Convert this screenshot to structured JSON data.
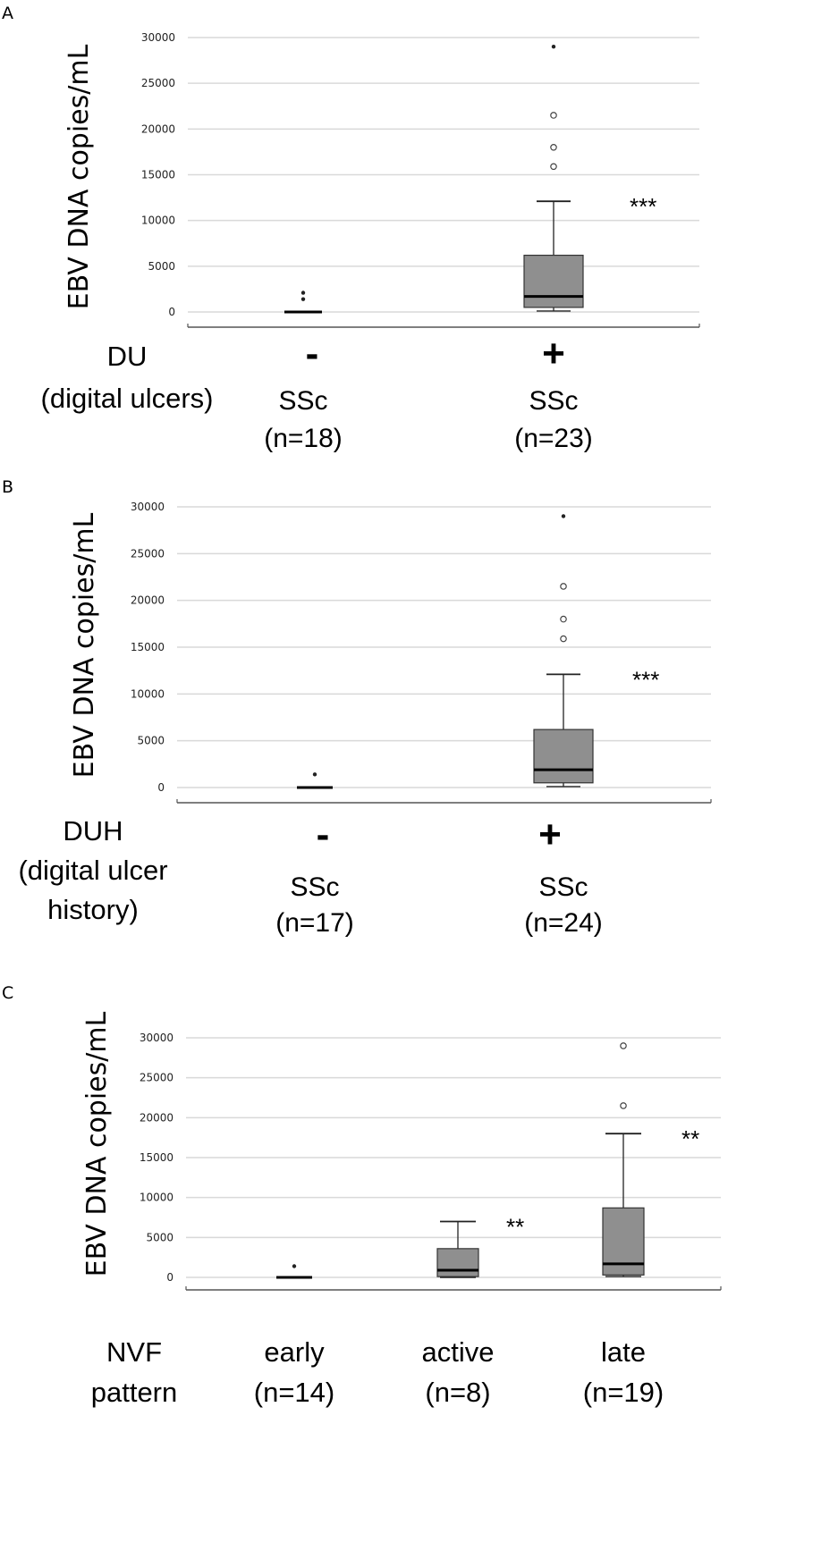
{
  "chart_data": [
    {
      "panel": "A",
      "type": "boxplot",
      "ylabel": "EBV DNA copies/mL",
      "ylim": [
        0,
        30000
      ],
      "yticks": [
        0,
        5000,
        10000,
        15000,
        20000,
        25000,
        30000
      ],
      "grid": true,
      "group_label": [
        "DU",
        "(digital ulcers)"
      ],
      "categories": [
        {
          "sign": "-",
          "label": [
            "SSc",
            "(n=18)"
          ],
          "min": 0,
          "q1": 0,
          "median": 0,
          "q3": 0,
          "max": 0,
          "outliers": [],
          "extremes": [
            1400,
            2100
          ],
          "sig": ""
        },
        {
          "sign": "+",
          "label": [
            "SSc",
            "(n=23)"
          ],
          "min": 100,
          "q1": 500,
          "median": 1700,
          "q3": 6200,
          "max": 12100,
          "outliers": [
            15900,
            18000,
            21500
          ],
          "extremes": [
            29000
          ],
          "sig": "***"
        }
      ]
    },
    {
      "panel": "B",
      "type": "boxplot",
      "ylabel": "EBV DNA copies/mL",
      "ylim": [
        0,
        30000
      ],
      "yticks": [
        0,
        5000,
        10000,
        15000,
        20000,
        25000,
        30000
      ],
      "grid": true,
      "group_label": [
        "DUH",
        "(digital ulcer",
        "history)"
      ],
      "categories": [
        {
          "sign": "-",
          "label": [
            "SSc",
            "(n=17)"
          ],
          "min": 0,
          "q1": 0,
          "median": 0,
          "q3": 0,
          "max": 0,
          "outliers": [],
          "extremes": [
            1400
          ],
          "sig": ""
        },
        {
          "sign": "+",
          "label": [
            "SSc",
            "(n=24)"
          ],
          "min": 100,
          "q1": 500,
          "median": 1900,
          "q3": 6200,
          "max": 12100,
          "outliers": [
            15900,
            18000,
            21500
          ],
          "extremes": [
            29000
          ],
          "sig": "***"
        }
      ]
    },
    {
      "panel": "C",
      "type": "boxplot",
      "ylabel": "EBV DNA copies/mL",
      "ylim": [
        0,
        30000
      ],
      "yticks": [
        0,
        5000,
        10000,
        15000,
        20000,
        25000,
        30000
      ],
      "grid": true,
      "group_label": [
        "NVF",
        "pattern"
      ],
      "categories": [
        {
          "sign": "",
          "label": [
            "early",
            "(n=14)"
          ],
          "min": 0,
          "q1": 0,
          "median": 0,
          "q3": 0,
          "max": 0,
          "outliers": [],
          "extremes": [
            1400
          ],
          "sig": ""
        },
        {
          "sign": "",
          "label": [
            "active",
            "(n=8)"
          ],
          "min": 0,
          "q1": 100,
          "median": 900,
          "q3": 3600,
          "max": 7000,
          "outliers": [],
          "extremes": [],
          "sig": "**"
        },
        {
          "sign": "",
          "label": [
            "late",
            "(n=19)"
          ],
          "min": 100,
          "q1": 300,
          "median": 1700,
          "q3": 8700,
          "max": 18000,
          "outliers": [
            21500,
            29000
          ],
          "extremes": [],
          "sig": "**"
        }
      ]
    }
  ],
  "colors": {
    "box": "#8f8f8f",
    "grid": "#d9d9d9",
    "axis": "#555555"
  }
}
